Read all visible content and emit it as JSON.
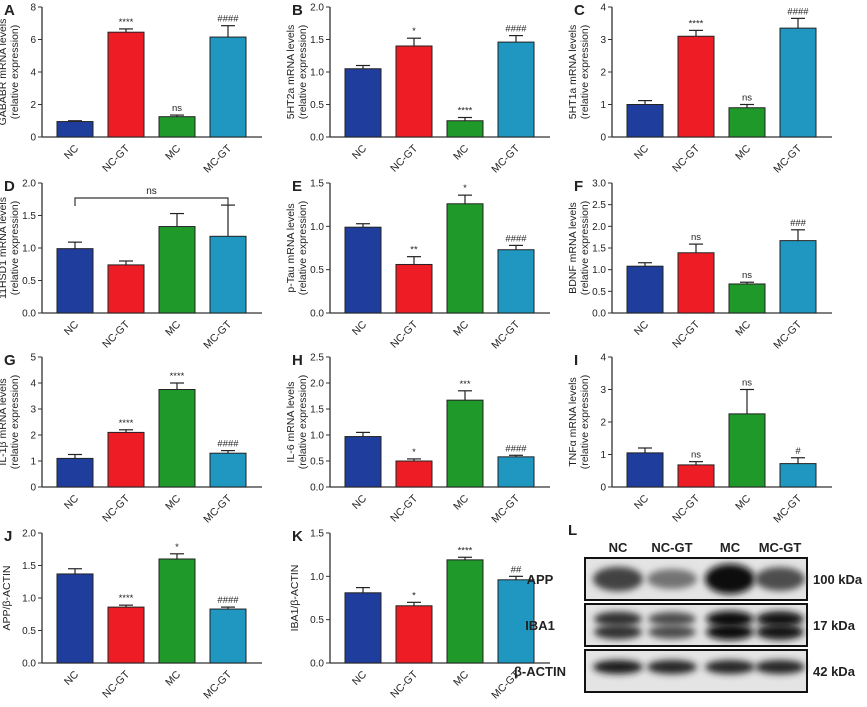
{
  "colors": {
    "NC": "#1f3d9c",
    "NC-GT": "#ee1c24",
    "MC": "#1f9a2a",
    "MC-GT": "#1f97c0"
  },
  "chart_data": [
    {
      "letter": "A",
      "type": "bar",
      "ylabel": [
        "GABABR mRNA levels",
        "(relative expression)"
      ],
      "categories": [
        "NC",
        "NC-GT",
        "MC",
        "MC-GT"
      ],
      "values": [
        0.95,
        6.45,
        1.25,
        6.15
      ],
      "errors": [
        0.05,
        0.2,
        0.1,
        0.7
      ],
      "significance": [
        "",
        "****",
        "ns",
        "####"
      ],
      "ylim": [
        0,
        8
      ],
      "yticks": [
        "0",
        "2",
        "4",
        "6",
        "8"
      ]
    },
    {
      "letter": "B",
      "type": "bar",
      "ylabel": [
        "5HT2a mRNA levels",
        "(relative expression)"
      ],
      "categories": [
        "NC",
        "NC-GT",
        "MC",
        "MC-GT"
      ],
      "values": [
        1.05,
        1.4,
        0.25,
        1.46
      ],
      "errors": [
        0.05,
        0.12,
        0.05,
        0.1
      ],
      "significance": [
        "",
        "*",
        "****",
        "####"
      ],
      "ylim": [
        0,
        2
      ],
      "yticks": [
        "0.0",
        "0.5",
        "1.0",
        "1.5",
        "2.0"
      ]
    },
    {
      "letter": "C",
      "type": "bar",
      "ylabel": [
        "5HT1a mRNA levels",
        "(relative expression)"
      ],
      "categories": [
        "NC",
        "NC-GT",
        "MC",
        "MC-GT"
      ],
      "values": [
        1.0,
        3.1,
        0.9,
        3.35
      ],
      "errors": [
        0.12,
        0.18,
        0.1,
        0.3
      ],
      "significance": [
        "",
        "****",
        "ns",
        "####"
      ],
      "ylim": [
        0,
        4
      ],
      "yticks": [
        "0",
        "1",
        "2",
        "3",
        "4"
      ]
    },
    {
      "letter": "D",
      "type": "bar",
      "ylabel": [
        "11HSD1 mRNA levels",
        "(relative expression)"
      ],
      "categories": [
        "NC",
        "NC-GT",
        "MC",
        "MC-GT"
      ],
      "values": [
        0.99,
        0.74,
        1.33,
        1.18
      ],
      "errors": [
        0.1,
        0.06,
        0.2,
        0.48
      ],
      "significance": [
        "",
        "",
        "",
        ""
      ],
      "bracket": "ns",
      "ylim": [
        0,
        2
      ],
      "yticks": [
        "0.0",
        "0.5",
        "1.0",
        "1.5",
        "2.0"
      ]
    },
    {
      "letter": "E",
      "type": "bar",
      "ylabel": [
        "p-Tau mRNA levels",
        "(relative expression)"
      ],
      "categories": [
        "NC",
        "NC-GT",
        "MC",
        "MC-GT"
      ],
      "values": [
        0.99,
        0.56,
        1.26,
        0.73
      ],
      "errors": [
        0.04,
        0.09,
        0.1,
        0.05
      ],
      "significance": [
        "",
        "**",
        "*",
        "####"
      ],
      "ylim": [
        0,
        1.5
      ],
      "yticks": [
        "0.0",
        "0.5",
        "1.0",
        "1.5"
      ]
    },
    {
      "letter": "F",
      "type": "bar",
      "ylabel": [
        "BDNF mRNA levels",
        "(relative expression)"
      ],
      "categories": [
        "NC",
        "NC-GT",
        "MC",
        "MC-GT"
      ],
      "values": [
        1.08,
        1.39,
        0.67,
        1.67
      ],
      "errors": [
        0.08,
        0.2,
        0.04,
        0.25
      ],
      "significance": [
        "",
        "ns",
        "ns",
        "###"
      ],
      "ylim": [
        0,
        3
      ],
      "yticks": [
        "0.0",
        "0.5",
        "1.0",
        "1.5",
        "2.0",
        "2.5",
        "3.0"
      ]
    },
    {
      "letter": "G",
      "type": "bar",
      "ylabel": [
        "IL-1β mRNA levels",
        "(relative expression)"
      ],
      "categories": [
        "NC",
        "NC-GT",
        "MC",
        "MC-GT"
      ],
      "values": [
        1.1,
        2.1,
        3.75,
        1.3
      ],
      "errors": [
        0.15,
        0.1,
        0.25,
        0.1
      ],
      "significance": [
        "",
        "****",
        "****",
        "####"
      ],
      "ylim": [
        0,
        5
      ],
      "yticks": [
        "0",
        "1",
        "2",
        "3",
        "4",
        "5"
      ]
    },
    {
      "letter": "H",
      "type": "bar",
      "ylabel": [
        "IL-6 mRNA levels",
        "(relative expression)"
      ],
      "categories": [
        "NC",
        "NC-GT",
        "MC",
        "MC-GT"
      ],
      "values": [
        0.97,
        0.5,
        1.67,
        0.58
      ],
      "errors": [
        0.08,
        0.04,
        0.18,
        0.03
      ],
      "significance": [
        "",
        "*",
        "***",
        "####"
      ],
      "ylim": [
        0,
        2.5
      ],
      "yticks": [
        "0.0",
        "0.5",
        "1.0",
        "1.5",
        "2.0",
        "2.5"
      ]
    },
    {
      "letter": "I",
      "type": "bar",
      "ylabel": [
        "TNFα mRNA levels",
        "(relative expression)"
      ],
      "categories": [
        "NC",
        "NC-GT",
        "MC",
        "MC-GT"
      ],
      "values": [
        1.05,
        0.68,
        2.25,
        0.72
      ],
      "errors": [
        0.15,
        0.1,
        0.75,
        0.18
      ],
      "significance": [
        "",
        "ns",
        "ns",
        "#"
      ],
      "ylim": [
        0,
        4
      ],
      "yticks": [
        "0",
        "1",
        "2",
        "3",
        "4"
      ]
    },
    {
      "letter": "J",
      "type": "bar",
      "ylabel": [
        "APP/β-ACTIN"
      ],
      "categories": [
        "NC",
        "NC-GT",
        "MC",
        "MC-GT"
      ],
      "values": [
        1.37,
        0.86,
        1.6,
        0.83
      ],
      "errors": [
        0.08,
        0.03,
        0.08,
        0.03
      ],
      "significance": [
        "",
        "****",
        "*",
        "####"
      ],
      "ylim": [
        0,
        2
      ],
      "yticks": [
        "0.0",
        "0.5",
        "1.0",
        "1.5",
        "2.0"
      ]
    },
    {
      "letter": "K",
      "type": "bar",
      "ylabel": [
        "IBA1/β-ACTIN"
      ],
      "categories": [
        "NC",
        "NC-GT",
        "MC",
        "MC-GT"
      ],
      "values": [
        0.81,
        0.66,
        1.19,
        0.96
      ],
      "errors": [
        0.06,
        0.04,
        0.03,
        0.04
      ],
      "significance": [
        "",
        "*",
        "****",
        "##"
      ],
      "ylim": [
        0,
        1.5
      ],
      "yticks": [
        "0.0",
        "0.5",
        "1.0",
        "1.5"
      ]
    }
  ],
  "blot": {
    "letter": "L",
    "lanes": [
      "NC",
      "NC-GT",
      "MC",
      "MC-GT"
    ],
    "rows": [
      {
        "protein": "APP",
        "size": "100 kDa",
        "intensity": [
          0.7,
          0.45,
          1.0,
          0.65
        ]
      },
      {
        "protein": "IBA1",
        "size": "17 kDa",
        "intensity": [
          0.8,
          0.65,
          1.0,
          0.95
        ]
      },
      {
        "protein": "β-ACTIN",
        "size": "42 kDa",
        "intensity": [
          0.9,
          0.85,
          0.85,
          0.85
        ]
      }
    ]
  }
}
